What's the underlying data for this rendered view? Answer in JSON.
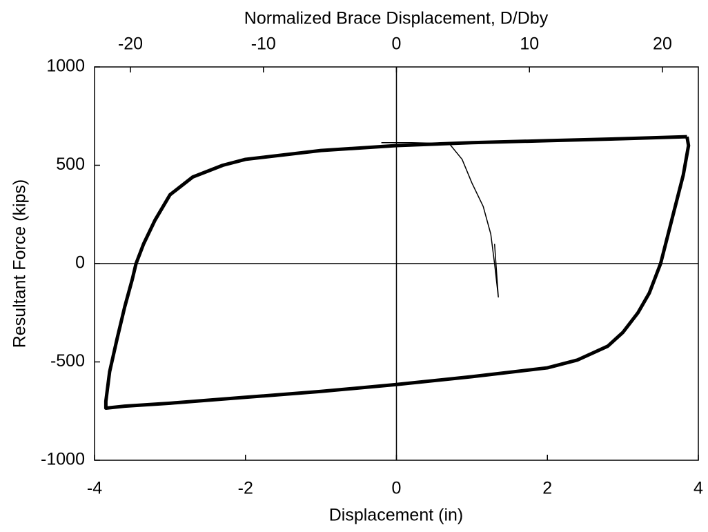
{
  "chart_data": {
    "type": "line",
    "title": "Normalized Brace Displacement, D/Dby",
    "xlabel": "Displacement (in)",
    "ylabel": "Resultant Force (kips)",
    "xlim": [
      -4,
      4
    ],
    "xticks": [
      -4,
      -2,
      0,
      2,
      4
    ],
    "ylim": [
      -1000,
      1000
    ],
    "yticks": [
      -1000,
      -500,
      0,
      500,
      1000
    ],
    "x2lim": [
      -22.7,
      22.7
    ],
    "x2ticks": [
      -20,
      -10,
      0,
      10,
      20
    ],
    "zero_lines": true,
    "series": [
      {
        "color": "#000000",
        "width": 5,
        "x": [
          3.85,
          3.87,
          3.8,
          3.7,
          3.6,
          3.5,
          3.35,
          3.2,
          3.0,
          2.8,
          2.4,
          2.0,
          1.0,
          0,
          -1.0,
          -2.0,
          -3.0,
          -3.6,
          -3.85,
          -3.85,
          -3.8,
          -3.7,
          -3.6,
          -3.5,
          -3.45,
          -3.35,
          -3.2,
          -3.0,
          -2.7,
          -2.3,
          -2.0,
          -1.0,
          0,
          1.0,
          2.0,
          3.0,
          3.85
        ],
        "y": [
          645,
          600,
          450,
          300,
          150,
          0,
          -150,
          -250,
          -350,
          -420,
          -490,
          -530,
          -575,
          -615,
          -650,
          -680,
          -710,
          -725,
          -735,
          -700,
          -550,
          -380,
          -220,
          -80,
          0,
          100,
          220,
          350,
          440,
          500,
          530,
          575,
          600,
          615,
          625,
          635,
          645
        ]
      },
      {
        "color": "#000000",
        "width": 1.5,
        "x": [
          -0.2,
          0.2,
          0.7,
          0.87,
          1.0,
          1.15,
          1.25,
          1.3,
          1.35,
          1.3
        ],
        "y": [
          615,
          615,
          610,
          530,
          410,
          290,
          150,
          0,
          -170,
          100
        ]
      }
    ]
  }
}
